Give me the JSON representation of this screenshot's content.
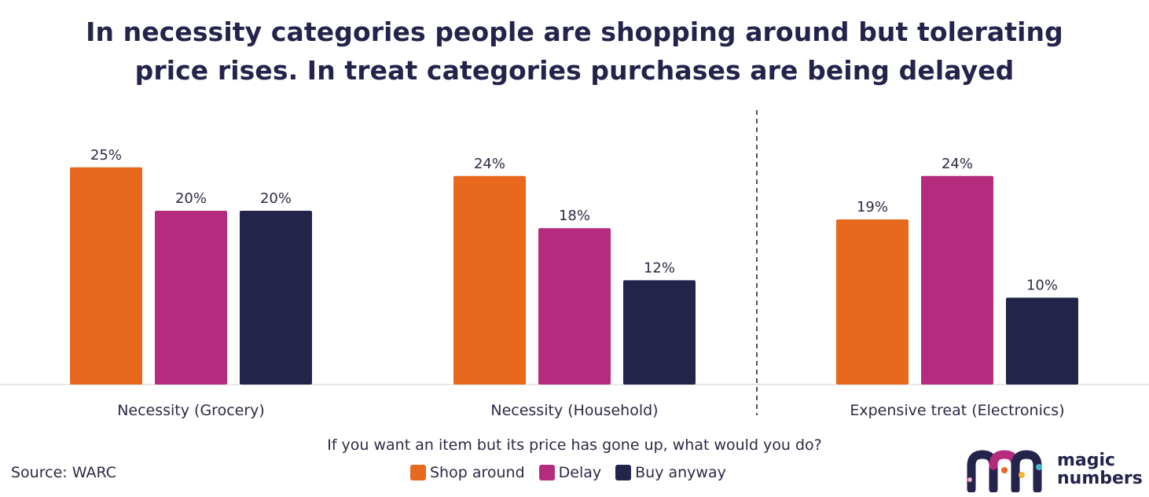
{
  "title_line1": "In necessity categories people are shopping around but tolerating",
  "title_line2": "price rises. In treat categories purchases are being delayed",
  "question": "If you want an item but its price has gone up, what would you do?",
  "source": "Source: WARC",
  "logo": {
    "line1": "magic",
    "line2": "numbers"
  },
  "legend": [
    {
      "label": "Shop around",
      "color": "#E8681E"
    },
    {
      "label": "Delay",
      "color": "#B52C7E"
    },
    {
      "label": "Buy anyway",
      "color": "#22244A"
    }
  ],
  "chart_data": {
    "type": "bar",
    "categories": [
      "Necessity (Grocery)",
      "Necessity (Household)",
      "Expensive treat (Electronics)"
    ],
    "series": [
      {
        "name": "Shop around",
        "values": [
          25,
          24,
          19
        ],
        "labels": [
          "25%",
          "24%",
          "19%"
        ],
        "color": "#E8681E"
      },
      {
        "name": "Delay",
        "values": [
          20,
          18,
          24
        ],
        "labels": [
          "20%",
          "18%",
          "24%"
        ],
        "color": "#B52C7E"
      },
      {
        "name": "Buy anyway",
        "values": [
          20,
          12,
          10
        ],
        "labels": [
          "20%",
          "12%",
          "10%"
        ],
        "color": "#22244A"
      }
    ],
    "ylim": [
      0,
      30
    ],
    "unit": "%",
    "grid": false,
    "legend_position": "bottom",
    "divider_between_categories": [
      2,
      3
    ]
  }
}
